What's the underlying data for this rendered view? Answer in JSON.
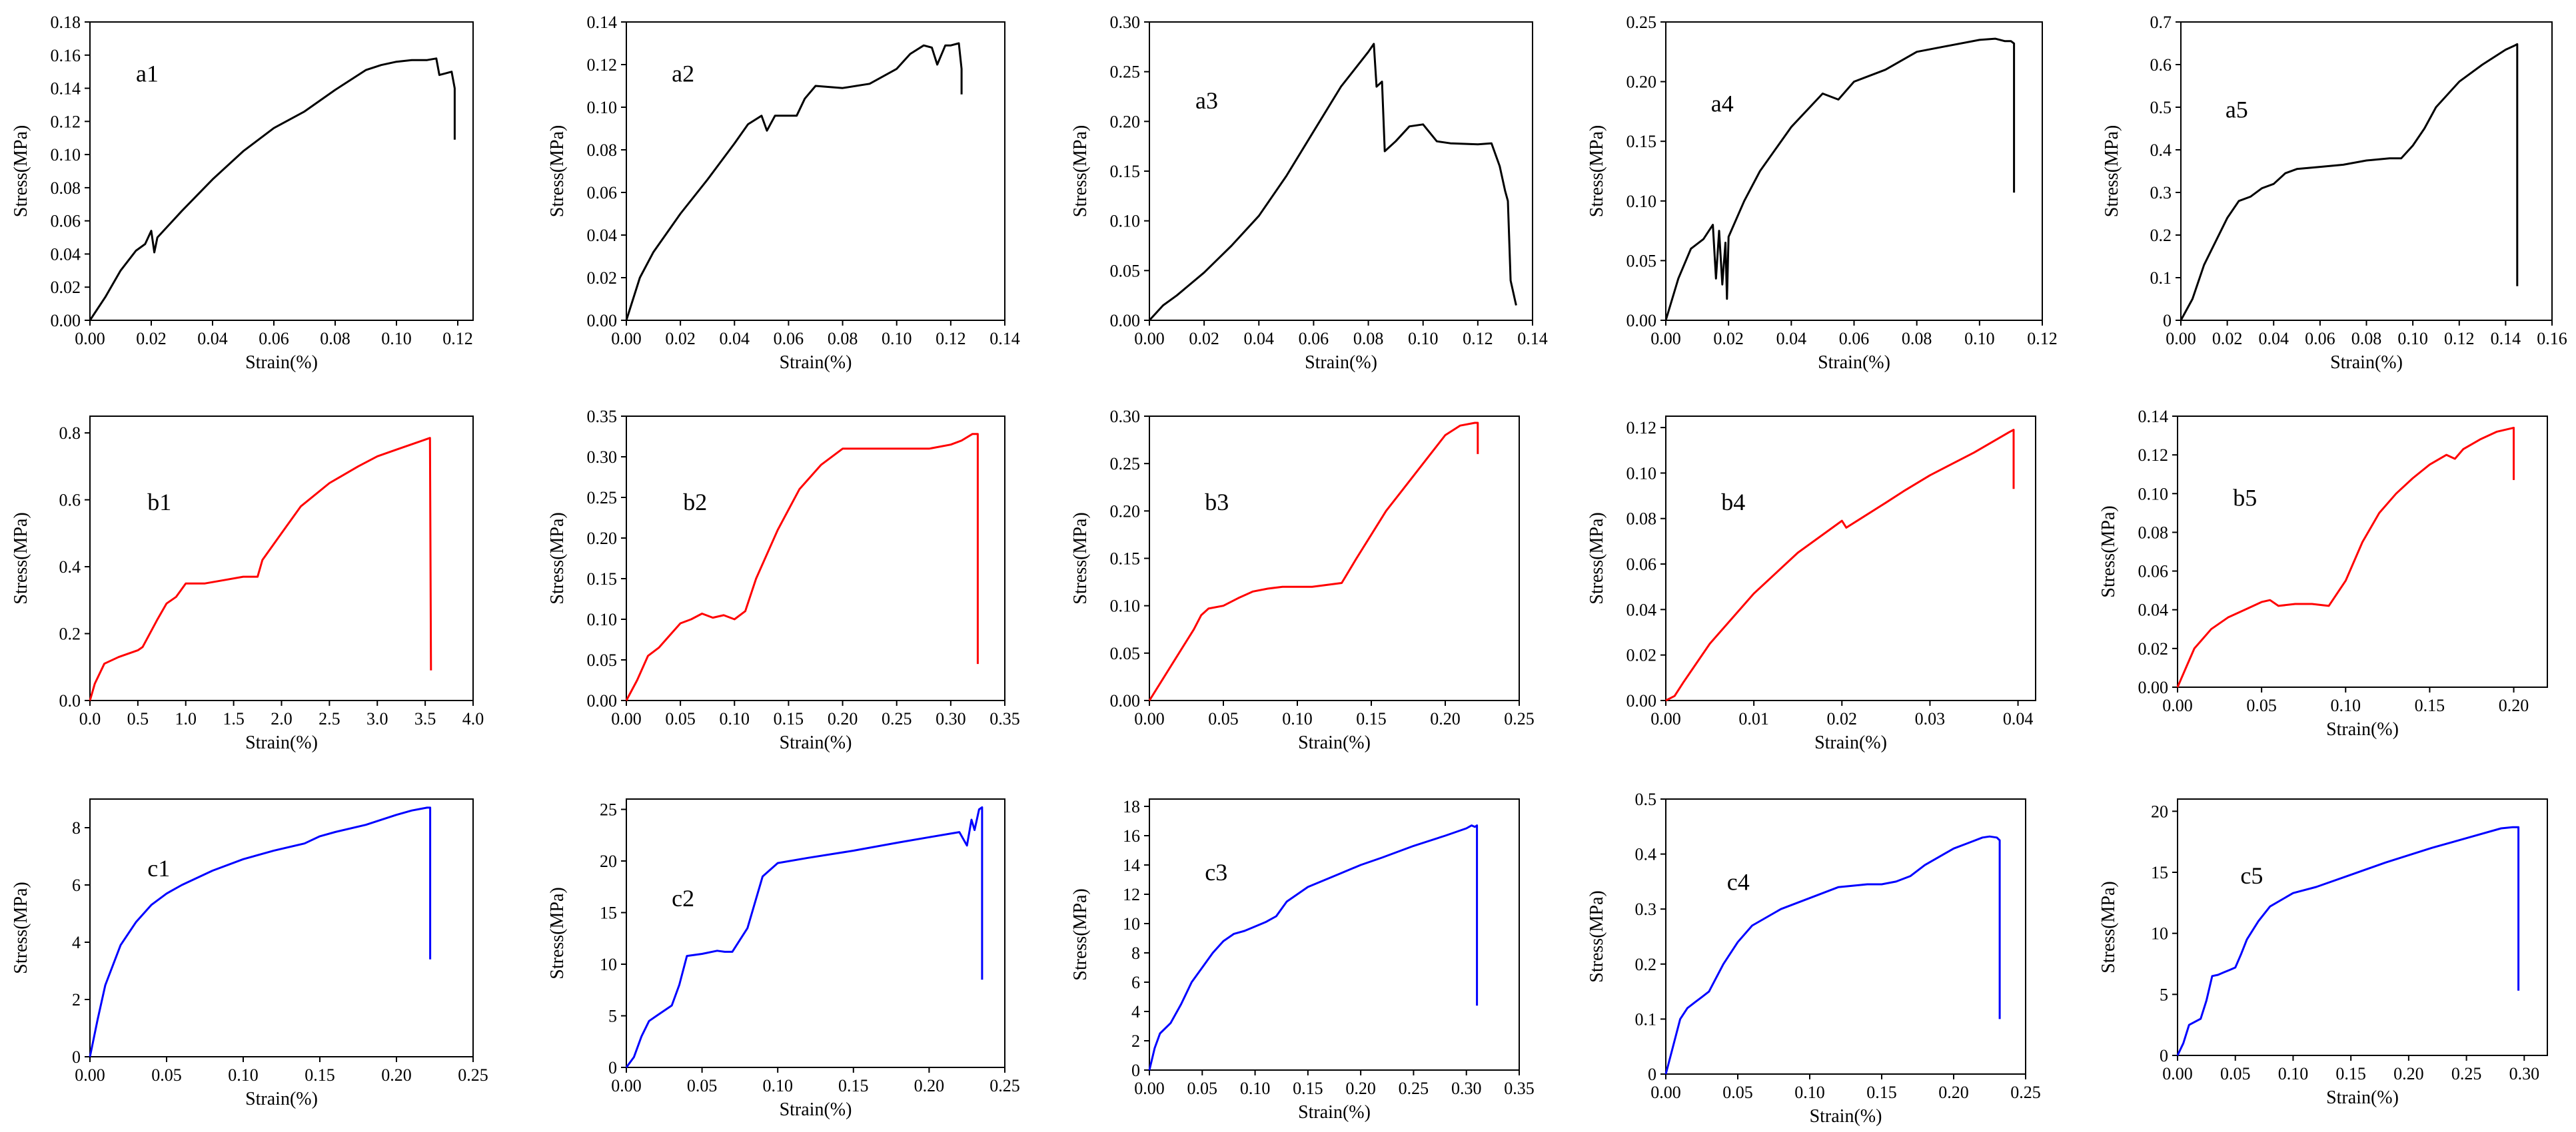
{
  "figure": {
    "rows": [
      "a",
      "b",
      "c"
    ]
  },
  "chart_data": [
    {
      "id": "a1",
      "type": "line",
      "color": "#000000",
      "label": "a1",
      "xlabel": "Strain(%)",
      "ylabel": "Stress(MPa)",
      "xlim": [
        0,
        0.125
      ],
      "ylim": [
        0,
        0.18
      ],
      "xticks": [
        "0.00",
        "0.02",
        "0.04",
        "0.06",
        "0.08",
        "0.10",
        "0.12"
      ],
      "yticks": [
        "0.00",
        "0.02",
        "0.04",
        "0.06",
        "0.08",
        "0.10",
        "0.12",
        "0.14",
        "0.16",
        "0.18"
      ],
      "x": [
        0,
        0.005,
        0.01,
        0.015,
        0.018,
        0.02,
        0.021,
        0.022,
        0.03,
        0.04,
        0.05,
        0.06,
        0.07,
        0.08,
        0.09,
        0.095,
        0.1,
        0.105,
        0.11,
        0.113,
        0.114,
        0.116,
        0.118,
        0.119,
        0.119
      ],
      "y": [
        0,
        0.014,
        0.03,
        0.042,
        0.046,
        0.054,
        0.041,
        0.05,
        0.066,
        0.085,
        0.102,
        0.116,
        0.126,
        0.139,
        0.151,
        0.154,
        0.156,
        0.157,
        0.157,
        0.158,
        0.148,
        0.149,
        0.15,
        0.14,
        0.109
      ]
    },
    {
      "id": "a2",
      "type": "line",
      "color": "#000000",
      "label": "a2",
      "xlabel": "Strain(%)",
      "ylabel": "Stress(MPa)",
      "xlim": [
        0,
        0.14
      ],
      "ylim": [
        0,
        0.14
      ],
      "xticks": [
        "0.00",
        "0.02",
        "0.04",
        "0.06",
        "0.08",
        "0.10",
        "0.12",
        "0.14"
      ],
      "yticks": [
        "0.00",
        "0.02",
        "0.04",
        "0.06",
        "0.08",
        "0.10",
        "0.12",
        "0.14"
      ],
      "x": [
        0,
        0.005,
        0.01,
        0.02,
        0.03,
        0.04,
        0.045,
        0.05,
        0.052,
        0.055,
        0.063,
        0.066,
        0.07,
        0.08,
        0.09,
        0.1,
        0.105,
        0.11,
        0.113,
        0.115,
        0.118,
        0.12,
        0.123,
        0.124,
        0.124
      ],
      "y": [
        0,
        0.02,
        0.032,
        0.05,
        0.066,
        0.083,
        0.092,
        0.096,
        0.089,
        0.096,
        0.096,
        0.104,
        0.11,
        0.109,
        0.111,
        0.118,
        0.125,
        0.129,
        0.128,
        0.12,
        0.129,
        0.129,
        0.13,
        0.118,
        0.106
      ]
    },
    {
      "id": "a3",
      "type": "line",
      "color": "#000000",
      "label": "a3",
      "xlabel": "Strain(%)",
      "ylabel": "Stress(MPa)",
      "xlim": [
        0,
        0.14
      ],
      "ylim": [
        0,
        0.3
      ],
      "xticks": [
        "0.00",
        "0.02",
        "0.04",
        "0.06",
        "0.08",
        "0.10",
        "0.12",
        "0.14"
      ],
      "yticks": [
        "0.00",
        "0.05",
        "0.10",
        "0.15",
        "0.20",
        "0.25",
        "0.30"
      ],
      "x": [
        0,
        0.005,
        0.01,
        0.02,
        0.03,
        0.04,
        0.05,
        0.06,
        0.07,
        0.08,
        0.082,
        0.083,
        0.085,
        0.086,
        0.09,
        0.095,
        0.1,
        0.105,
        0.11,
        0.12,
        0.125,
        0.128,
        0.13,
        0.131,
        0.132,
        0.134
      ],
      "y": [
        0,
        0.015,
        0.025,
        0.048,
        0.075,
        0.105,
        0.145,
        0.19,
        0.235,
        0.27,
        0.278,
        0.235,
        0.24,
        0.17,
        0.18,
        0.195,
        0.197,
        0.18,
        0.178,
        0.177,
        0.178,
        0.155,
        0.13,
        0.12,
        0.04,
        0.015
      ]
    },
    {
      "id": "a4",
      "type": "line",
      "color": "#000000",
      "label": "a4",
      "xlabel": "Strain(%)",
      "ylabel": "Stress(MPa)",
      "xlim": [
        0,
        0.12
      ],
      "ylim": [
        0,
        0.25
      ],
      "xticks": [
        "0.00",
        "0.02",
        "0.04",
        "0.06",
        "0.08",
        "0.10",
        "0.12"
      ],
      "yticks": [
        "0.00",
        "0.05",
        "0.10",
        "0.15",
        "0.20",
        "0.25"
      ],
      "x": [
        0,
        0.004,
        0.008,
        0.012,
        0.015,
        0.016,
        0.017,
        0.018,
        0.019,
        0.0195,
        0.02,
        0.025,
        0.03,
        0.04,
        0.05,
        0.055,
        0.06,
        0.07,
        0.08,
        0.09,
        0.1,
        0.105,
        0.108,
        0.11,
        0.111,
        0.111
      ],
      "y": [
        0,
        0.035,
        0.06,
        0.068,
        0.08,
        0.035,
        0.075,
        0.03,
        0.065,
        0.018,
        0.07,
        0.1,
        0.125,
        0.162,
        0.19,
        0.185,
        0.2,
        0.21,
        0.225,
        0.23,
        0.235,
        0.236,
        0.234,
        0.234,
        0.232,
        0.107
      ]
    },
    {
      "id": "a5",
      "type": "line",
      "color": "#000000",
      "label": "a5",
      "xlabel": "Strain(%)",
      "ylabel": "Stress(MPa)",
      "xlim": [
        0,
        0.16
      ],
      "ylim": [
        0,
        0.7
      ],
      "xticks": [
        "0.00",
        "0.02",
        "0.04",
        "0.06",
        "0.08",
        "0.10",
        "0.12",
        "0.14",
        "0.16"
      ],
      "yticks": [
        "0",
        "0.1",
        "0.2",
        "0.3",
        "0.4",
        "0.5",
        "0.6",
        "0.7"
      ],
      "x": [
        0,
        0.005,
        0.01,
        0.02,
        0.025,
        0.03,
        0.035,
        0.04,
        0.045,
        0.05,
        0.06,
        0.07,
        0.08,
        0.09,
        0.095,
        0.1,
        0.105,
        0.11,
        0.12,
        0.13,
        0.14,
        0.144,
        0.145,
        0.145
      ],
      "y": [
        0,
        0.05,
        0.13,
        0.24,
        0.28,
        0.29,
        0.31,
        0.32,
        0.345,
        0.355,
        0.36,
        0.365,
        0.375,
        0.38,
        0.38,
        0.41,
        0.45,
        0.5,
        0.56,
        0.6,
        0.635,
        0.645,
        0.648,
        0.08
      ]
    },
    {
      "id": "b1",
      "type": "line",
      "color": "#ff0000",
      "label": "b1",
      "xlabel": "Strain(%)",
      "ylabel": "Stress(MPa)",
      "xlim": [
        0,
        4.0
      ],
      "ylim": [
        0,
        0.85
      ],
      "xticks": [
        "0.0",
        "0.5",
        "1.0",
        "1.5",
        "2.0",
        "2.5",
        "3.0",
        "3.5",
        "4.0"
      ],
      "yticks": [
        "0.0",
        "0.2",
        "0.4",
        "0.6",
        "0.8"
      ],
      "x": [
        0,
        0.05,
        0.15,
        0.3,
        0.5,
        0.55,
        0.7,
        0.8,
        0.9,
        1.0,
        1.2,
        1.4,
        1.6,
        1.75,
        1.8,
        2.0,
        2.2,
        2.5,
        2.8,
        3.0,
        3.2,
        3.4,
        3.5,
        3.55,
        3.56
      ],
      "y": [
        0,
        0.05,
        0.11,
        0.13,
        0.15,
        0.16,
        0.24,
        0.29,
        0.31,
        0.35,
        0.35,
        0.36,
        0.37,
        0.37,
        0.42,
        0.5,
        0.58,
        0.65,
        0.7,
        0.73,
        0.75,
        0.77,
        0.78,
        0.785,
        0.09
      ]
    },
    {
      "id": "b2",
      "type": "line",
      "color": "#ff0000",
      "label": "b2",
      "xlabel": "Strain(%)",
      "ylabel": "Stress(MPa)",
      "xlim": [
        0,
        0.35
      ],
      "ylim": [
        0,
        0.35
      ],
      "xticks": [
        "0.00",
        "0.05",
        "0.10",
        "0.15",
        "0.20",
        "0.25",
        "0.30",
        "0.35"
      ],
      "yticks": [
        "0.00",
        "0.05",
        "0.10",
        "0.15",
        "0.20",
        "0.25",
        "0.30",
        "0.35"
      ],
      "x": [
        0,
        0.01,
        0.02,
        0.03,
        0.04,
        0.05,
        0.06,
        0.07,
        0.08,
        0.09,
        0.1,
        0.11,
        0.12,
        0.14,
        0.16,
        0.18,
        0.2,
        0.22,
        0.25,
        0.28,
        0.3,
        0.31,
        0.32,
        0.325,
        0.325
      ],
      "y": [
        0,
        0.025,
        0.055,
        0.065,
        0.08,
        0.095,
        0.1,
        0.107,
        0.102,
        0.105,
        0.1,
        0.11,
        0.15,
        0.21,
        0.26,
        0.29,
        0.31,
        0.31,
        0.31,
        0.31,
        0.315,
        0.32,
        0.328,
        0.328,
        0.045
      ]
    },
    {
      "id": "b3",
      "type": "line",
      "color": "#ff0000",
      "label": "b3",
      "xlabel": "Strain(%)",
      "ylabel": "Stress(MPa)",
      "xlim": [
        0,
        0.25
      ],
      "ylim": [
        0,
        0.3
      ],
      "xticks": [
        "0.00",
        "0.05",
        "0.10",
        "0.15",
        "0.20",
        "0.25"
      ],
      "yticks": [
        "0.00",
        "0.05",
        "0.10",
        "0.15",
        "0.20",
        "0.25",
        "0.30"
      ],
      "x": [
        0,
        0.01,
        0.02,
        0.03,
        0.035,
        0.04,
        0.05,
        0.06,
        0.07,
        0.08,
        0.09,
        0.1,
        0.11,
        0.12,
        0.13,
        0.14,
        0.15,
        0.16,
        0.17,
        0.18,
        0.19,
        0.2,
        0.21,
        0.22,
        0.222,
        0.222
      ],
      "y": [
        0,
        0.025,
        0.05,
        0.075,
        0.09,
        0.097,
        0.1,
        0.108,
        0.115,
        0.118,
        0.12,
        0.12,
        0.12,
        0.122,
        0.124,
        0.15,
        0.175,
        0.2,
        0.22,
        0.24,
        0.26,
        0.28,
        0.29,
        0.293,
        0.293,
        0.26
      ]
    },
    {
      "id": "b4",
      "type": "line",
      "color": "#ff0000",
      "label": "b4",
      "xlabel": "Strain(%)",
      "ylabel": "Stress(MPa)",
      "xlim": [
        0,
        0.042
      ],
      "ylim": [
        0,
        0.125
      ],
      "xticks": [
        "0.00",
        "0.01",
        "0.02",
        "0.03",
        "0.04"
      ],
      "yticks": [
        "0.00",
        "0.02",
        "0.04",
        "0.06",
        "0.08",
        "0.10",
        "0.12"
      ],
      "x": [
        0,
        0.001,
        0.002,
        0.005,
        0.01,
        0.015,
        0.02,
        0.0205,
        0.025,
        0.027,
        0.03,
        0.035,
        0.039,
        0.0395,
        0.0395
      ],
      "y": [
        0,
        0.002,
        0.008,
        0.025,
        0.047,
        0.065,
        0.079,
        0.076,
        0.087,
        0.092,
        0.099,
        0.109,
        0.118,
        0.119,
        0.093
      ]
    },
    {
      "id": "b5",
      "type": "line",
      "color": "#ff0000",
      "label": "b5",
      "xlabel": "Strain(%)",
      "ylabel": "Stress(MPa)",
      "xlim": [
        0,
        0.22
      ],
      "ylim": [
        0,
        0.14
      ],
      "xticks": [
        "0.00",
        "0.05",
        "0.10",
        "0.15",
        "0.20"
      ],
      "yticks": [
        "0.00",
        "0.02",
        "0.04",
        "0.06",
        "0.08",
        "0.10",
        "0.12",
        "0.14"
      ],
      "x": [
        0,
        0.005,
        0.01,
        0.02,
        0.03,
        0.04,
        0.05,
        0.055,
        0.06,
        0.07,
        0.08,
        0.09,
        0.1,
        0.11,
        0.12,
        0.13,
        0.14,
        0.15,
        0.16,
        0.165,
        0.17,
        0.18,
        0.19,
        0.2,
        0.2
      ],
      "y": [
        0,
        0.01,
        0.02,
        0.03,
        0.036,
        0.04,
        0.044,
        0.045,
        0.042,
        0.043,
        0.043,
        0.042,
        0.055,
        0.075,
        0.09,
        0.1,
        0.108,
        0.115,
        0.12,
        0.118,
        0.123,
        0.128,
        0.132,
        0.134,
        0.107
      ]
    },
    {
      "id": "c1",
      "type": "line",
      "color": "#0000ff",
      "label": "c1",
      "xlabel": "Strain(%)",
      "ylabel": "Stress(MPa)",
      "xlim": [
        0,
        0.25
      ],
      "ylim": [
        0,
        9
      ],
      "xticks": [
        "0.00",
        "0.05",
        "0.10",
        "0.15",
        "0.20",
        "0.25"
      ],
      "yticks": [
        "0",
        "2",
        "4",
        "6",
        "8"
      ],
      "x": [
        0,
        0.005,
        0.01,
        0.02,
        0.03,
        0.04,
        0.05,
        0.06,
        0.08,
        0.1,
        0.12,
        0.14,
        0.15,
        0.16,
        0.18,
        0.2,
        0.21,
        0.22,
        0.222,
        0.222
      ],
      "y": [
        0,
        1.3,
        2.5,
        3.9,
        4.7,
        5.3,
        5.7,
        6.0,
        6.5,
        6.9,
        7.2,
        7.45,
        7.7,
        7.85,
        8.1,
        8.45,
        8.6,
        8.7,
        8.7,
        3.4
      ]
    },
    {
      "id": "c2",
      "type": "line",
      "color": "#0000ff",
      "label": "c2",
      "xlabel": "Strain(%)",
      "ylabel": "Stress(MPa)",
      "xlim": [
        0,
        0.25
      ],
      "ylim": [
        0,
        26
      ],
      "xticks": [
        "0.00",
        "0.05",
        "0.10",
        "0.15",
        "0.20",
        "0.25"
      ],
      "yticks": [
        "0",
        "5",
        "10",
        "15",
        "20",
        "25"
      ],
      "x": [
        0,
        0.005,
        0.01,
        0.015,
        0.02,
        0.03,
        0.035,
        0.04,
        0.05,
        0.06,
        0.065,
        0.07,
        0.08,
        0.09,
        0.1,
        0.12,
        0.15,
        0.18,
        0.2,
        0.22,
        0.225,
        0.228,
        0.23,
        0.233,
        0.235,
        0.235
      ],
      "y": [
        0,
        1,
        3,
        4.5,
        5,
        6,
        8,
        10.8,
        11,
        11.3,
        11.2,
        11.2,
        13.5,
        18.5,
        19.8,
        20.3,
        21,
        21.8,
        22.3,
        22.8,
        21.5,
        24,
        23,
        25,
        25.2,
        8.5
      ]
    },
    {
      "id": "c3",
      "type": "line",
      "color": "#0000ff",
      "label": "c3",
      "xlabel": "Strain(%)",
      "ylabel": "Stress(MPa)",
      "xlim": [
        0,
        0.35
      ],
      "ylim": [
        0,
        18.5
      ],
      "xticks": [
        "0.00",
        "0.05",
        "0.10",
        "0.15",
        "0.20",
        "0.25",
        "0.30",
        "0.35"
      ],
      "yticks": [
        "0",
        "2",
        "4",
        "6",
        "8",
        "10",
        "12",
        "14",
        "16",
        "18"
      ],
      "x": [
        0,
        0.005,
        0.01,
        0.02,
        0.03,
        0.04,
        0.05,
        0.06,
        0.07,
        0.08,
        0.09,
        0.1,
        0.11,
        0.12,
        0.13,
        0.15,
        0.18,
        0.2,
        0.22,
        0.25,
        0.28,
        0.3,
        0.305,
        0.308,
        0.31,
        0.31
      ],
      "y": [
        0,
        1.5,
        2.5,
        3.2,
        4.5,
        6,
        7,
        8,
        8.8,
        9.3,
        9.5,
        9.8,
        10.1,
        10.5,
        11.5,
        12.5,
        13.4,
        14,
        14.5,
        15.3,
        16,
        16.5,
        16.7,
        16.6,
        16.7,
        4.4
      ]
    },
    {
      "id": "c4",
      "type": "line",
      "color": "#0000ff",
      "label": "c4",
      "xlabel": "Strain(%)",
      "ylabel": "Stress(MPa)",
      "xlim": [
        0,
        0.25
      ],
      "ylim": [
        0,
        0.5
      ],
      "xticks": [
        "0.00",
        "0.05",
        "0.10",
        "0.15",
        "0.20",
        "0.25"
      ],
      "yticks": [
        "0",
        "0.1",
        "0.2",
        "0.3",
        "0.4",
        "0.5"
      ],
      "x": [
        0,
        0.005,
        0.01,
        0.015,
        0.02,
        0.025,
        0.03,
        0.04,
        0.05,
        0.06,
        0.08,
        0.1,
        0.12,
        0.14,
        0.15,
        0.16,
        0.17,
        0.18,
        0.19,
        0.2,
        0.21,
        0.22,
        0.225,
        0.23,
        0.232,
        0.232
      ],
      "y": [
        0,
        0.05,
        0.1,
        0.12,
        0.13,
        0.14,
        0.15,
        0.2,
        0.24,
        0.27,
        0.3,
        0.32,
        0.34,
        0.345,
        0.345,
        0.35,
        0.36,
        0.38,
        0.395,
        0.41,
        0.42,
        0.43,
        0.432,
        0.43,
        0.425,
        0.1
      ]
    },
    {
      "id": "c5",
      "type": "line",
      "color": "#0000ff",
      "label": "c5",
      "xlabel": "Strain(%)",
      "ylabel": "Stress(MPa)",
      "xlim": [
        0,
        0.32
      ],
      "ylim": [
        0,
        21
      ],
      "xticks": [
        "0.00",
        "0.05",
        "0.10",
        "0.15",
        "0.20",
        "0.25",
        "0.30"
      ],
      "yticks": [
        "0",
        "5",
        "10",
        "15",
        "20"
      ],
      "x": [
        0,
        0.005,
        0.01,
        0.02,
        0.025,
        0.03,
        0.035,
        0.04,
        0.045,
        0.05,
        0.055,
        0.06,
        0.07,
        0.08,
        0.1,
        0.12,
        0.15,
        0.18,
        0.2,
        0.22,
        0.25,
        0.28,
        0.29,
        0.295,
        0.295
      ],
      "y": [
        0,
        1,
        2.5,
        3,
        4.5,
        6.5,
        6.6,
        6.8,
        7,
        7.2,
        8.3,
        9.5,
        11,
        12.2,
        13.3,
        13.8,
        14.8,
        15.8,
        16.4,
        17,
        17.8,
        18.6,
        18.7,
        18.7,
        5.3
      ]
    }
  ]
}
